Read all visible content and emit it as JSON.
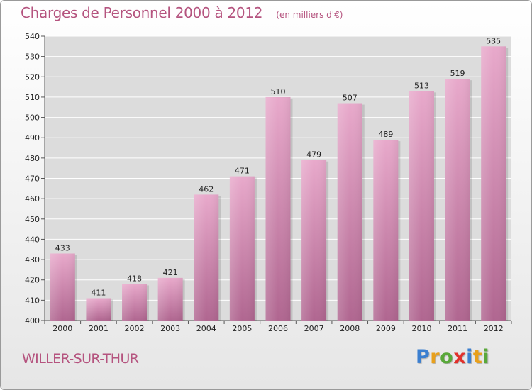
{
  "header": {
    "title": "Charges de Personnel 2000 à 2012",
    "subtitle": "(en milliers d'€)"
  },
  "footer": {
    "town": "WILLER-SUR-THUR",
    "brand": "Proxiti"
  },
  "colors": {
    "accent": "#b5547f",
    "bar_top": "#e8a9cb",
    "bar_bottom": "#b06690",
    "brand_letters": [
      "#3b7fd0",
      "#e8a01c",
      "#59a83a",
      "#e2312c",
      "#3b7fd0",
      "#e8a01c",
      "#59a83a"
    ]
  },
  "chart_data": {
    "type": "bar",
    "title": "Charges de Personnel 2000 à 2012",
    "subtitle": "(en milliers d'€)",
    "categories": [
      "2000",
      "2001",
      "2002",
      "2003",
      "2004",
      "2005",
      "2006",
      "2007",
      "2008",
      "2009",
      "2010",
      "2011",
      "2012"
    ],
    "values": [
      433,
      411,
      418,
      421,
      462,
      471,
      510,
      479,
      507,
      489,
      513,
      519,
      535
    ],
    "ylim": [
      400,
      540
    ],
    "yticks": [
      400,
      410,
      420,
      430,
      440,
      450,
      460,
      470,
      480,
      490,
      500,
      510,
      520,
      530,
      540
    ],
    "grid": true,
    "data_labels": true
  }
}
